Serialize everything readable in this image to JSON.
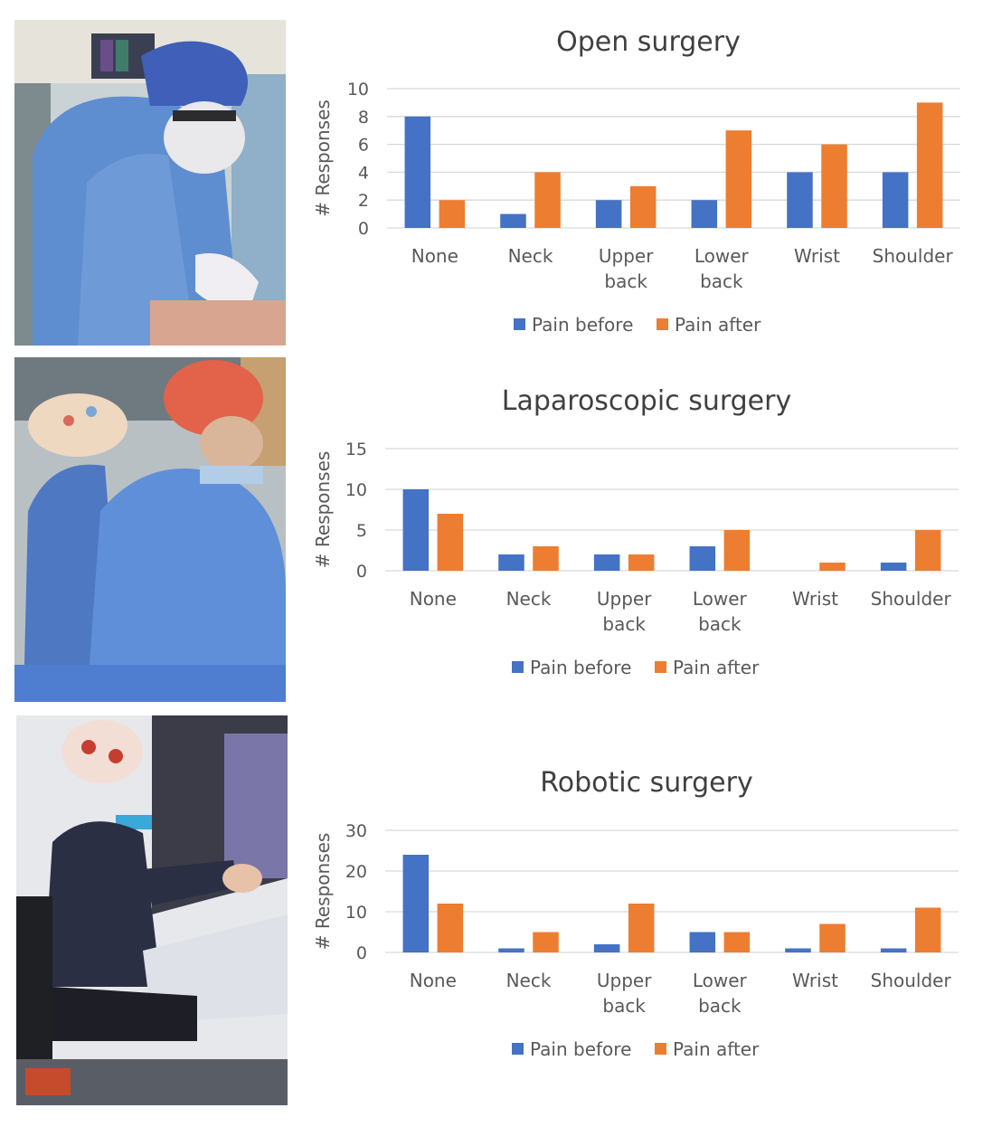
{
  "colors": {
    "pain_before": "#4472c4",
    "pain_after": "#ed7d31",
    "gridline": "#d9d9d9",
    "text": "#595959"
  },
  "photos": [
    {
      "name": "open-surgery-photo"
    },
    {
      "name": "laparoscopic-surgery-photo"
    },
    {
      "name": "robotic-surgery-photo"
    }
  ],
  "chart_data": [
    {
      "type": "bar",
      "title": "Open surgery",
      "ylabel": "# Responses",
      "xlabel": "",
      "categories": [
        [
          "None"
        ],
        [
          "Neck"
        ],
        [
          "Upper",
          "back"
        ],
        [
          "Lower",
          "back"
        ],
        [
          "Wrist"
        ],
        [
          "Shoulder"
        ]
      ],
      "series": [
        {
          "name": "Pain before",
          "values": [
            8,
            1,
            2,
            2,
            4,
            4
          ]
        },
        {
          "name": "Pain after",
          "values": [
            2,
            4,
            3,
            7,
            6,
            9
          ]
        }
      ],
      "ylim": [
        0,
        10
      ],
      "yticks": [
        0,
        2,
        4,
        6,
        8,
        10
      ],
      "grid": true,
      "legend_position": "bottom"
    },
    {
      "type": "bar",
      "title": "Laparoscopic surgery",
      "ylabel": "# Responses",
      "xlabel": "",
      "categories": [
        [
          "None"
        ],
        [
          "Neck"
        ],
        [
          "Upper",
          "back"
        ],
        [
          "Lower",
          "back"
        ],
        [
          "Wrist"
        ],
        [
          "Shoulder"
        ]
      ],
      "series": [
        {
          "name": "Pain before",
          "values": [
            10,
            2,
            2,
            3,
            0,
            1
          ]
        },
        {
          "name": "Pain after",
          "values": [
            7,
            3,
            2,
            5,
            1,
            5
          ]
        }
      ],
      "ylim": [
        0,
        15
      ],
      "yticks": [
        0,
        5,
        10,
        15
      ],
      "grid": true,
      "legend_position": "bottom"
    },
    {
      "type": "bar",
      "title": "Robotic surgery",
      "ylabel": "# Responses",
      "xlabel": "",
      "categories": [
        [
          "None"
        ],
        [
          "Neck"
        ],
        [
          "Upper",
          "back"
        ],
        [
          "Lower",
          "back"
        ],
        [
          "Wrist"
        ],
        [
          "Shoulder"
        ]
      ],
      "series": [
        {
          "name": "Pain before",
          "values": [
            24,
            1,
            2,
            5,
            1,
            1
          ]
        },
        {
          "name": "Pain after",
          "values": [
            12,
            5,
            12,
            5,
            7,
            11
          ]
        }
      ],
      "ylim": [
        0,
        30
      ],
      "yticks": [
        0,
        10,
        20,
        30
      ],
      "grid": true,
      "legend_position": "bottom"
    }
  ]
}
